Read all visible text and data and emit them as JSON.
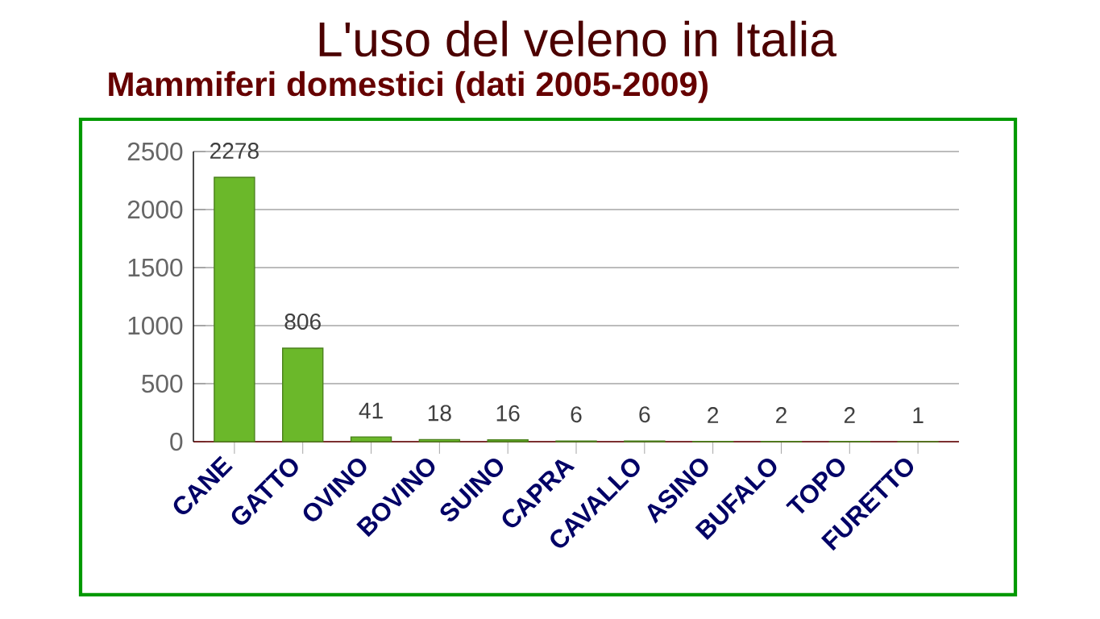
{
  "chart_data": {
    "type": "bar",
    "title": "L'uso del veleno in Italia",
    "subtitle": "Mammiferi domestici (dati 2005-2009)",
    "categories": [
      "CANE",
      "GATTO",
      "OVINO",
      "BOVINO",
      "SUINO",
      "CAPRA",
      "CAVALLO",
      "ASINO",
      "BUFALO",
      "TOPO",
      "FURETTO"
    ],
    "values": [
      2278,
      806,
      41,
      18,
      16,
      6,
      6,
      2,
      2,
      2,
      1
    ],
    "color": "#6bb82a",
    "ylim": [
      0,
      2500
    ],
    "yticks": [
      0,
      500,
      1000,
      1500,
      2000,
      2500
    ],
    "grid": "y",
    "data_labels": true
  }
}
